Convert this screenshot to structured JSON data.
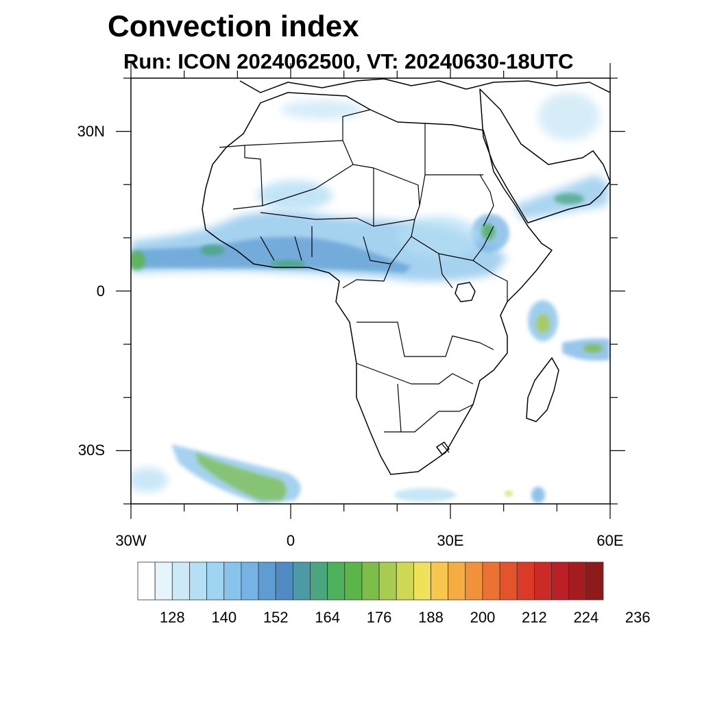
{
  "title": "Convection index",
  "subtitle": "Run: ICON 2024062500,  VT: 20240630-18UTC",
  "map": {
    "lon_range": [
      -30,
      60
    ],
    "lat_range": [
      -40,
      40
    ],
    "y_ticks": [
      {
        "lat": 30,
        "label": "30N"
      },
      {
        "lat": 0,
        "label": "0"
      },
      {
        "lat": -30,
        "label": "30S"
      }
    ],
    "x_ticks": [
      {
        "lon": -30,
        "label": "30W"
      },
      {
        "lon": 0,
        "label": "0"
      },
      {
        "lon": 30,
        "label": "30E"
      },
      {
        "lon": 60,
        "label": "60E"
      }
    ]
  },
  "colorbar": {
    "colors": [
      "#ffffff",
      "#e6f4fb",
      "#cce9f7",
      "#b4dff4",
      "#9fd5f2",
      "#87c3ea",
      "#74b3e3",
      "#5e9dd3",
      "#4f8cc4",
      "#4b9aa6",
      "#4aa67e",
      "#4db05a",
      "#5cb548",
      "#7dbe4b",
      "#a8cc4f",
      "#cfd853",
      "#efe15a",
      "#f6c64d",
      "#f5ad42",
      "#f1923a",
      "#ec7233",
      "#e4542c",
      "#db3a28",
      "#cc2a26",
      "#b91f24",
      "#a51c20",
      "#8e1a1c"
    ],
    "tick_labels": [
      "128",
      "140",
      "152",
      "164",
      "176",
      "188",
      "200",
      "212",
      "224",
      "236"
    ]
  }
}
